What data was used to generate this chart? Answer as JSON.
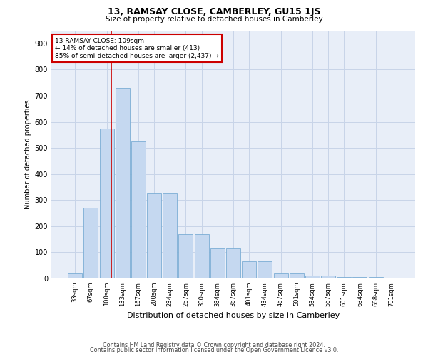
{
  "title1": "13, RAMSAY CLOSE, CAMBERLEY, GU15 1JS",
  "title2": "Size of property relative to detached houses in Camberley",
  "xlabel": "Distribution of detached houses by size in Camberley",
  "ylabel": "Number of detached properties",
  "categories": [
    "33sqm",
    "67sqm",
    "100sqm",
    "133sqm",
    "167sqm",
    "200sqm",
    "234sqm",
    "267sqm",
    "300sqm",
    "334sqm",
    "367sqm",
    "401sqm",
    "434sqm",
    "467sqm",
    "501sqm",
    "534sqm",
    "567sqm",
    "601sqm",
    "634sqm",
    "668sqm",
    "701sqm"
  ],
  "values": [
    20,
    270,
    575,
    730,
    525,
    325,
    325,
    170,
    170,
    115,
    115,
    65,
    65,
    20,
    20,
    10,
    10,
    6,
    6,
    6,
    0
  ],
  "bar_color": "#c5d8f0",
  "bar_edge_color": "#7aadd4",
  "grid_color": "#c8d4e8",
  "background_color": "#e8eef8",
  "annotation_box_color": "#ffffff",
  "annotation_box_edge": "#cc0000",
  "vline_color": "#cc0000",
  "vline_x": 2.27,
  "annotation_text1": "13 RAMSAY CLOSE: 109sqm",
  "annotation_text2": "← 14% of detached houses are smaller (413)",
  "annotation_text3": "85% of semi-detached houses are larger (2,437) →",
  "ylim": [
    0,
    950
  ],
  "yticks": [
    0,
    100,
    200,
    300,
    400,
    500,
    600,
    700,
    800,
    900
  ],
  "footer1": "Contains HM Land Registry data © Crown copyright and database right 2024.",
  "footer2": "Contains public sector information licensed under the Open Government Licence v3.0."
}
